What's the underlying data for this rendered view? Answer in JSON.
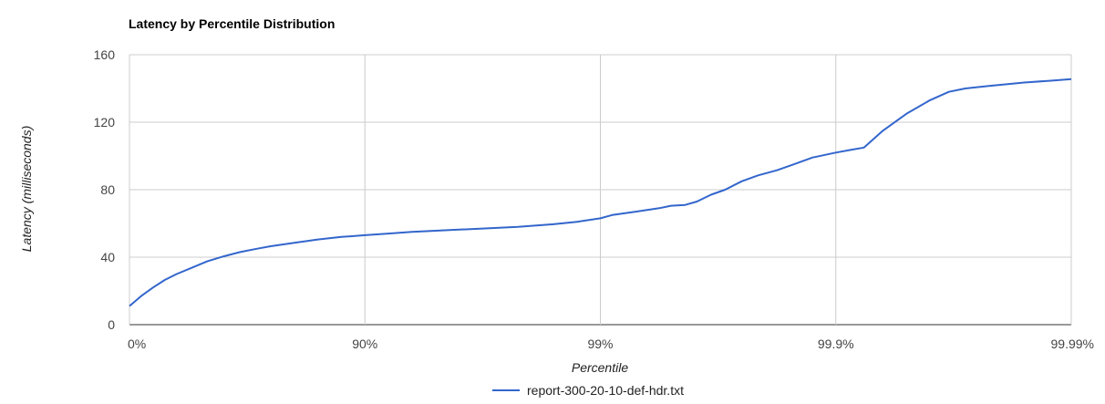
{
  "chart_data": {
    "type": "line",
    "title": "Latency by Percentile Distribution",
    "xlabel": "Percentile",
    "ylabel": "Latency (milliseconds)",
    "x_scale": "log-percentile",
    "x_ticks": [
      "0%",
      "90%",
      "99%",
      "99.9%",
      "99.99%"
    ],
    "y_ticks": [
      0,
      40,
      80,
      120,
      160
    ],
    "ylim": [
      0,
      160
    ],
    "grid": true,
    "legend_position": "bottom",
    "series": [
      {
        "name": "report-300-20-10-def-hdr.txt",
        "color": "#3366cc",
        "points": [
          [
            0,
            11
          ],
          [
            0.05,
            17
          ],
          [
            0.1,
            22
          ],
          [
            0.15,
            26.5
          ],
          [
            0.2,
            30
          ],
          [
            0.27,
            34
          ],
          [
            0.33,
            37.5
          ],
          [
            0.4,
            40.5
          ],
          [
            0.47,
            43
          ],
          [
            0.54,
            45
          ],
          [
            0.6,
            46.5
          ],
          [
            0.7,
            48.5
          ],
          [
            0.8,
            50.5
          ],
          [
            0.9,
            52
          ],
          [
            1.0,
            53
          ],
          [
            1.1,
            54
          ],
          [
            1.2,
            55
          ],
          [
            1.35,
            56
          ],
          [
            1.5,
            57
          ],
          [
            1.65,
            58
          ],
          [
            1.8,
            59.5
          ],
          [
            1.9,
            61
          ],
          [
            2.0,
            63
          ],
          [
            2.05,
            65
          ],
          [
            2.15,
            67
          ],
          [
            2.25,
            69
          ],
          [
            2.3,
            70.5
          ],
          [
            2.36,
            71
          ],
          [
            2.41,
            73
          ],
          [
            2.47,
            77
          ],
          [
            2.53,
            80
          ],
          [
            2.6,
            85
          ],
          [
            2.67,
            88.5
          ],
          [
            2.75,
            91.5
          ],
          [
            2.82,
            95
          ],
          [
            2.9,
            99
          ],
          [
            3.0,
            102
          ],
          [
            3.06,
            103.5
          ],
          [
            3.12,
            105
          ],
          [
            3.2,
            115
          ],
          [
            3.3,
            125
          ],
          [
            3.4,
            133
          ],
          [
            3.48,
            138
          ],
          [
            3.55,
            140
          ],
          [
            3.65,
            141.5
          ],
          [
            3.8,
            143.5
          ],
          [
            3.9,
            144.5
          ],
          [
            4.0,
            145.5
          ]
        ]
      }
    ]
  }
}
